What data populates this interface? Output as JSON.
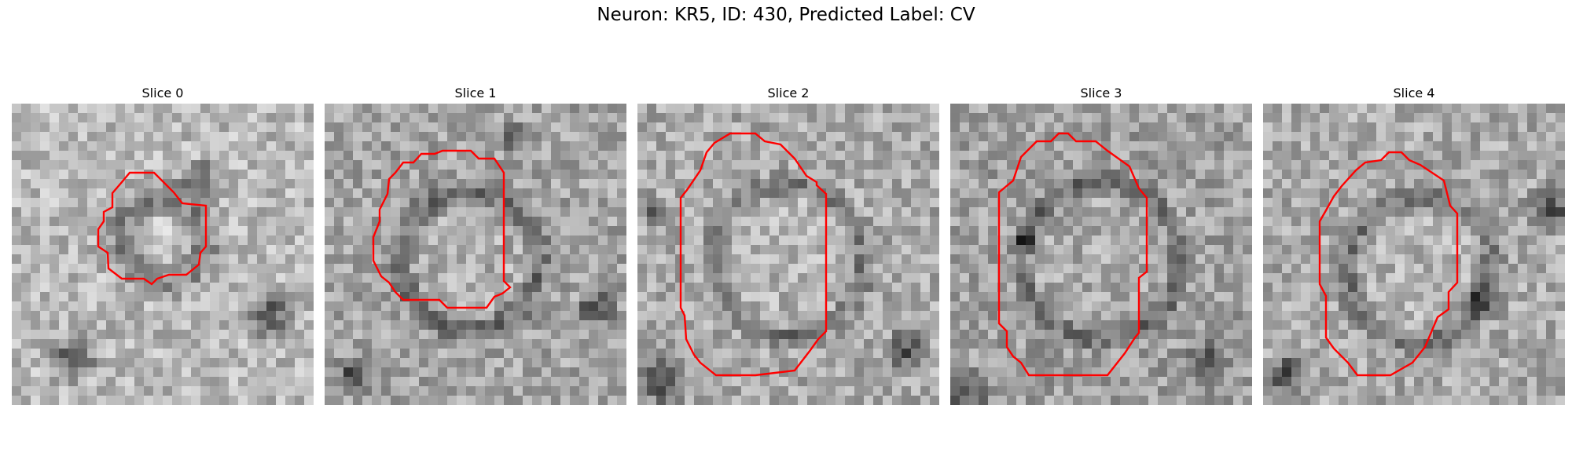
{
  "figure": {
    "title": "Neuron: KR5, ID: 430, Predicted Label: CV",
    "contour_color": "#ff0000",
    "colormap": "gray"
  },
  "slices": [
    {
      "title": "Slice 0"
    },
    {
      "title": "Slice 1"
    },
    {
      "title": "Slice 2"
    },
    {
      "title": "Slice 3"
    },
    {
      "title": "Slice 4"
    }
  ]
}
